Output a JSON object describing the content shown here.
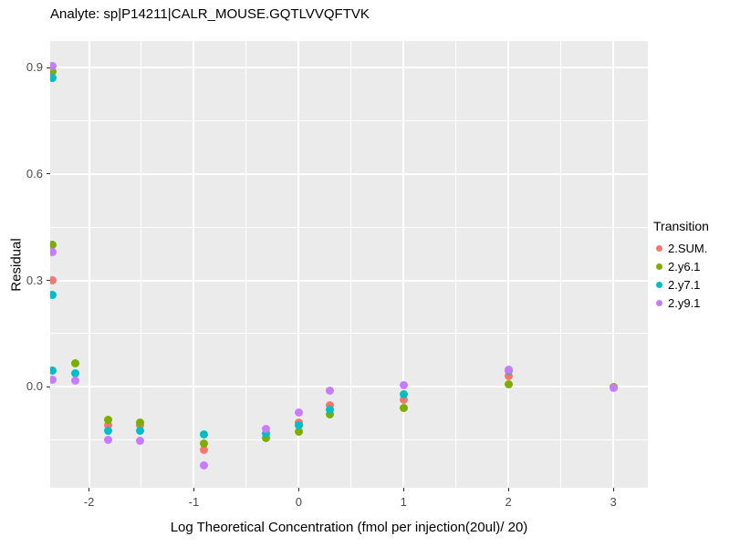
{
  "chart_data": {
    "type": "scatter",
    "title": "Analyte: sp|P14211|CALR_MOUSE.GQTLVVQFTVK",
    "xlabel": "Log Theoretical Concentration (fmol per injection(20ul)/ 20)",
    "ylabel": "Residual",
    "xlim": [
      -2.37,
      3.33
    ],
    "ylim": [
      -0.285,
      0.975
    ],
    "x_ticks": {
      "values": [
        -2,
        -1,
        0,
        1,
        2,
        3
      ],
      "labels": [
        "-2",
        "-1",
        "0",
        "1",
        "2",
        "3"
      ]
    },
    "y_ticks": {
      "values": [
        0.0,
        0.3,
        0.6,
        0.9
      ],
      "labels": [
        "0.0",
        "0.3",
        "0.6",
        "0.9"
      ]
    },
    "x_minor": [
      -1.5,
      -0.5,
      0.5,
      1.5,
      2.5
    ],
    "y_minor": [
      -0.15,
      0.15,
      0.45,
      0.75
    ],
    "grid": "on",
    "legend": {
      "title": "Transition",
      "position": "right"
    },
    "colors": {
      "panel_bg": "#EBEBEB",
      "grid": "#FFFFFF",
      "axis_text": "#4D4D4D",
      "text": "#000000"
    },
    "series": [
      {
        "name": "2.SUM.",
        "color": "#F8766D",
        "points": [
          [
            -2.35,
            0.3
          ],
          [
            -1.82,
            -0.11
          ],
          [
            -1.51,
            -0.11
          ],
          [
            -0.9,
            -0.178
          ],
          [
            0.0,
            -0.1
          ],
          [
            0.3,
            -0.051
          ],
          [
            1.0,
            -0.036
          ],
          [
            2.0,
            0.031
          ]
        ]
      },
      {
        "name": "2.y6.1",
        "color": "#7CAE00",
        "points": [
          [
            -2.35,
            0.888
          ],
          [
            -2.35,
            0.4
          ],
          [
            -2.13,
            0.065
          ],
          [
            -1.82,
            -0.093
          ],
          [
            -1.51,
            -0.1
          ],
          [
            -0.9,
            -0.16
          ],
          [
            -0.31,
            -0.145
          ],
          [
            0.0,
            -0.126
          ],
          [
            0.3,
            -0.078
          ],
          [
            1.0,
            -0.059
          ],
          [
            2.0,
            0.008
          ],
          [
            3.0,
            0.0
          ]
        ]
      },
      {
        "name": "2.y7.1",
        "color": "#00BFC4",
        "points": [
          [
            -2.35,
            0.87
          ],
          [
            -2.35,
            0.26
          ],
          [
            -2.35,
            0.045
          ],
          [
            -2.13,
            0.039
          ],
          [
            -1.82,
            -0.123
          ],
          [
            -1.51,
            -0.123
          ],
          [
            -0.9,
            -0.135
          ],
          [
            -0.31,
            -0.131
          ],
          [
            0.0,
            -0.108
          ],
          [
            0.3,
            -0.066
          ],
          [
            1.0,
            -0.022
          ],
          [
            2.0,
            0.045
          ]
        ]
      },
      {
        "name": "2.y9.1",
        "color": "#C77CFF",
        "points": [
          [
            -2.35,
            0.905
          ],
          [
            -2.35,
            0.38
          ],
          [
            -2.35,
            0.02
          ],
          [
            -2.13,
            0.018
          ],
          [
            -1.82,
            -0.149
          ],
          [
            -1.51,
            -0.152
          ],
          [
            -0.9,
            -0.222
          ],
          [
            -0.31,
            -0.118
          ],
          [
            0.0,
            -0.072
          ],
          [
            0.3,
            -0.01
          ],
          [
            1.0,
            0.005
          ],
          [
            2.0,
            0.049
          ],
          [
            3.0,
            -0.003
          ]
        ]
      }
    ]
  }
}
